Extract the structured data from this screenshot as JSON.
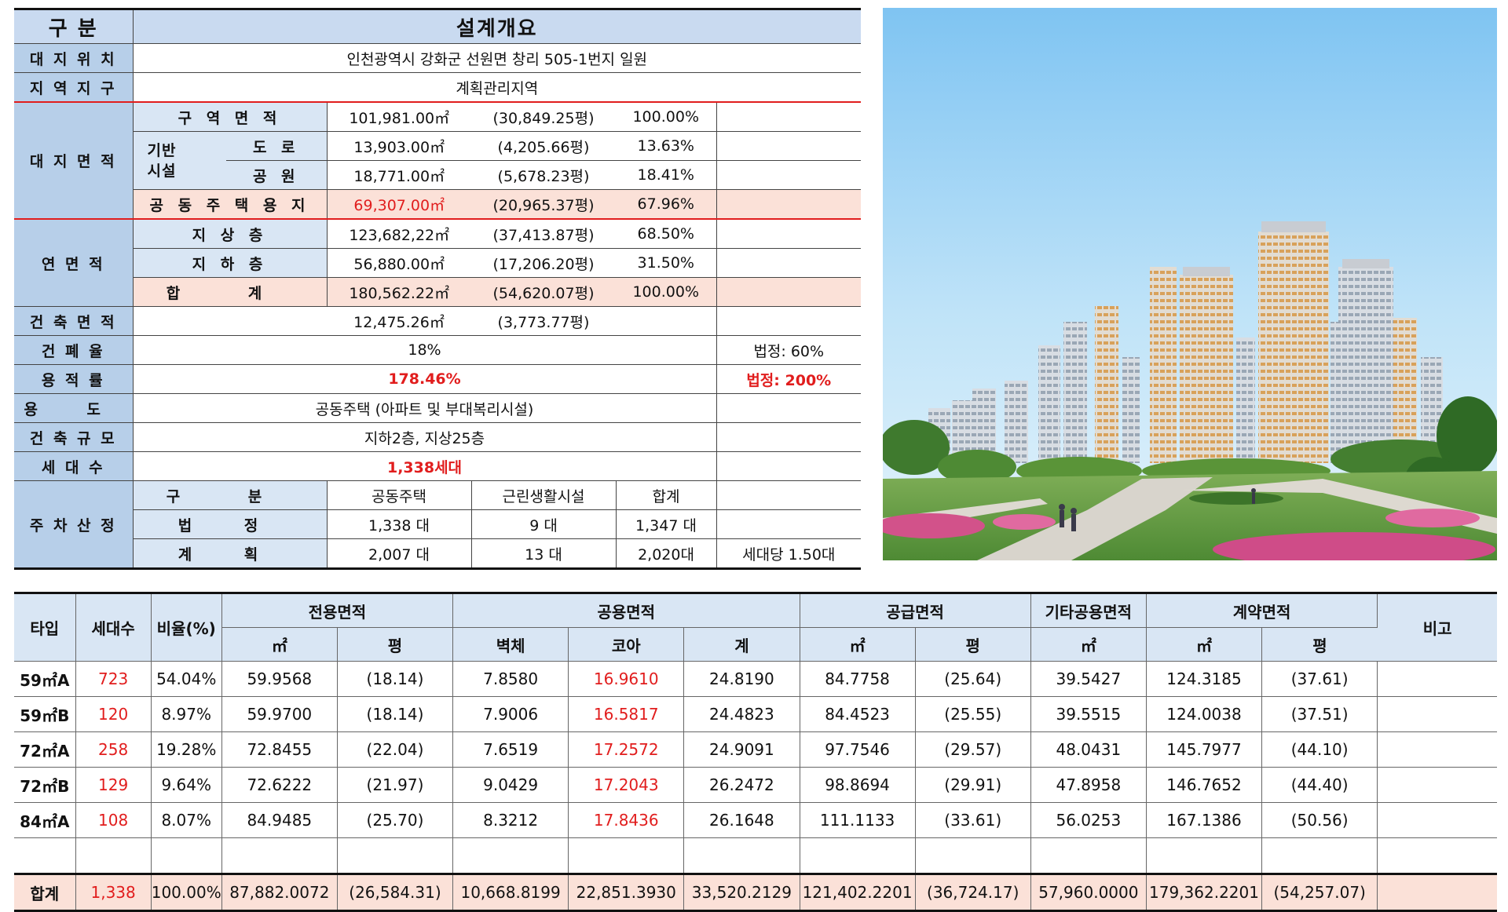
{
  "overview": {
    "header_label": "구 분",
    "header_title": "설계개요",
    "site_location_label": "대 지 위 치",
    "site_location": "인천광역시 강화군 선원면 창리 505-1번지 일원",
    "zone_label": "지 역 지 구",
    "zone": "계획관리지역",
    "site_area_label": "대 지 면 적",
    "infra_label": "기반\n시설",
    "site_rows": [
      {
        "label": "구 역 면 적",
        "m2": "101,981.00㎡",
        "pyeong": "(30,849.25평)",
        "ratio": "100.00%"
      },
      {
        "label": "도 로",
        "m2": "13,903.00㎡",
        "pyeong": "(4,205.66평)",
        "ratio": "13.63%"
      },
      {
        "label": "공 원",
        "m2": "18,771.00㎡",
        "pyeong": "(5,678.23평)",
        "ratio": "18.41%"
      },
      {
        "label": "공 동 주 택 용 지",
        "m2": "69,307.00㎡",
        "pyeong": "(20,965.37평)",
        "ratio": "67.96%"
      }
    ],
    "floor_area_label": "연 면 적",
    "floor_rows": [
      {
        "label": "지 상 층",
        "m2": "123,682,22㎡",
        "pyeong": "(37,413.87평)",
        "ratio": "68.50%"
      },
      {
        "label": "지 하 층",
        "m2": "56,880.00㎡",
        "pyeong": "(17,206.20평)",
        "ratio": "31.50%"
      },
      {
        "label": "합 계",
        "m2": "180,562.22㎡",
        "pyeong": "(54,620.07평)",
        "ratio": "100.00%"
      }
    ],
    "building_area_label": "건 축 면 적",
    "building_area_m2": "12,475.26㎡",
    "building_area_pyeong": "(3,773.77평)",
    "coverage_label": "건 폐 율",
    "coverage": "18%",
    "coverage_legal": "법정: 60%",
    "far_label": "용 적 률",
    "far": "178.46%",
    "far_legal": "법정: 200%",
    "use_label": "용 도",
    "use": "공동주택 (아파트 및 부대복리시설)",
    "scale_label": "건 축 규 모",
    "scale": "지하2층, 지상25층",
    "households_label": "세 대 수",
    "households": "1,338세대",
    "parking_label": "주 차 산 정",
    "parking_head": {
      "label": "구 분",
      "housing": "공동주택",
      "facility": "근린생활시설",
      "total": "합계"
    },
    "parking_rows": [
      {
        "label": "법 정",
        "housing": "1,338 대",
        "facility": "9 대",
        "total": "1,347 대",
        "note": ""
      },
      {
        "label": "계 획",
        "housing": "2,007 대",
        "facility": "13 대",
        "total": "2,020대",
        "note": "세대당 1.50대"
      }
    ]
  },
  "types_table": {
    "head": {
      "type": "타입",
      "units": "세대수",
      "ratio": "비율(%)",
      "exclusive": "전용면적",
      "common": "공용면적",
      "supply": "공급면적",
      "other_common": "기타공용면적",
      "contract": "계약면적",
      "remarks": "비고",
      "m2": "㎡",
      "pyeong": "평",
      "wall": "벽체",
      "core": "코아",
      "sum": "계"
    },
    "rows": [
      {
        "type": "59㎡A",
        "units": "723",
        "ratio": "54.04%",
        "ex_m2": "59.9568",
        "ex_py": "(18.14)",
        "wall": "7.8580",
        "core": "16.9610",
        "sum": "24.8190",
        "sup_m2": "84.7758",
        "sup_py": "(25.64)",
        "oth": "39.5427",
        "con_m2": "124.3185",
        "con_py": "(37.61)"
      },
      {
        "type": "59㎡B",
        "units": "120",
        "ratio": "8.97%",
        "ex_m2": "59.9700",
        "ex_py": "(18.14)",
        "wall": "7.9006",
        "core": "16.5817",
        "sum": "24.4823",
        "sup_m2": "84.4523",
        "sup_py": "(25.55)",
        "oth": "39.5515",
        "con_m2": "124.0038",
        "con_py": "(37.51)"
      },
      {
        "type": "72㎡A",
        "units": "258",
        "ratio": "19.28%",
        "ex_m2": "72.8455",
        "ex_py": "(22.04)",
        "wall": "7.6519",
        "core": "17.2572",
        "sum": "24.9091",
        "sup_m2": "97.7546",
        "sup_py": "(29.57)",
        "oth": "48.0431",
        "con_m2": "145.7977",
        "con_py": "(44.10)"
      },
      {
        "type": "72㎡B",
        "units": "129",
        "ratio": "9.64%",
        "ex_m2": "72.6222",
        "ex_py": "(21.97)",
        "wall": "9.0429",
        "core": "17.2043",
        "sum": "26.2472",
        "sup_m2": "98.8694",
        "sup_py": "(29.91)",
        "oth": "47.8958",
        "con_m2": "146.7652",
        "con_py": "(44.40)"
      },
      {
        "type": "84㎡A",
        "units": "108",
        "ratio": "8.07%",
        "ex_m2": "84.9485",
        "ex_py": "(25.70)",
        "wall": "8.3212",
        "core": "17.8436",
        "sum": "26.1648",
        "sup_m2": "111.1133",
        "sup_py": "(33.61)",
        "oth": "56.0253",
        "con_m2": "167.1386",
        "con_py": "(50.56)"
      }
    ],
    "total": {
      "type": "합계",
      "units": "1,338",
      "ratio": "100.00%",
      "ex_m2": "87,882.0072",
      "ex_py": "(26,584.31)",
      "wall": "10,668.8199",
      "core": "22,851.3930",
      "sum": "33,520.2129",
      "sup_m2": "121,402.2201",
      "sup_py": "(36,724.17)",
      "oth": "57,960.0000",
      "con_m2": "179,362.2201",
      "con_py": "(54,257.07)"
    }
  },
  "colors": {
    "header_blue": "#b7cfe9",
    "sub_blue": "#d9e6f4",
    "highlight_pink": "#fbe1d8",
    "accent_red": "#e11d1d"
  }
}
